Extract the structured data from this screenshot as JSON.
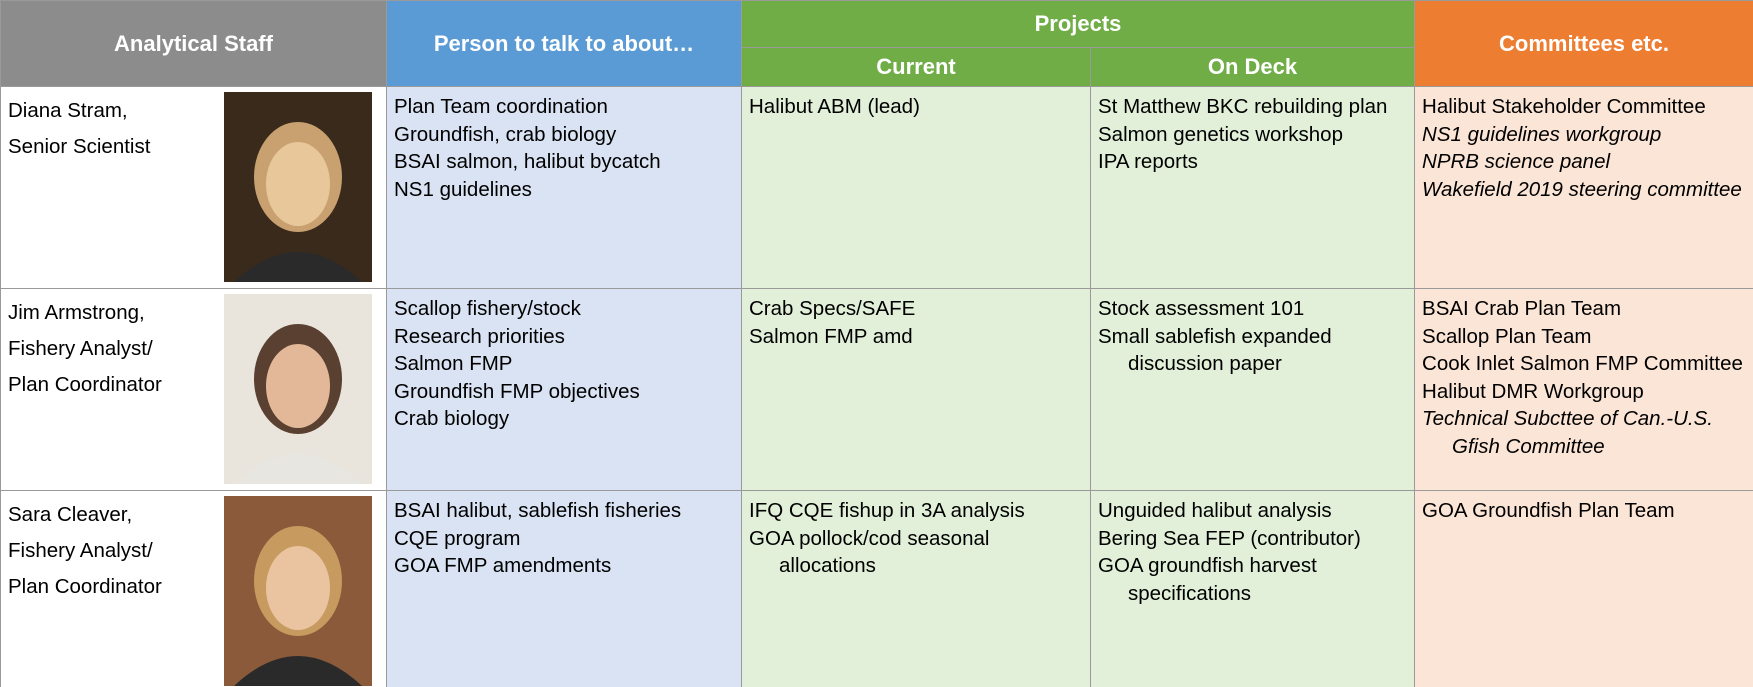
{
  "header": {
    "staff": "Analytical Staff",
    "person": "Person to talk to about…",
    "projects": "Projects",
    "current": "Current",
    "on_deck": "On Deck",
    "committees": "Committees etc."
  },
  "rows": [
    {
      "name": "Diana Stram,",
      "title_lines": [
        "Senior Scientist"
      ],
      "topics": [
        "Plan Team coordination",
        "Groundfish, crab biology",
        "BSAI salmon, halibut bycatch",
        "NS1 guidelines"
      ],
      "current": [
        "Halibut ABM (lead)"
      ],
      "on_deck": [
        "St Matthew BKC rebuilding plan",
        "Salmon genetics workshop",
        "IPA reports"
      ],
      "committees": [
        {
          "text": "Halibut Stakeholder Committee",
          "italic": false
        },
        {
          "text": "NS1 guidelines workgroup",
          "italic": true
        },
        {
          "text": "NPRB science panel",
          "italic": true
        },
        {
          "text": "Wakefield 2019 steering committee",
          "italic": true
        }
      ]
    },
    {
      "name": "Jim Armstrong,",
      "title_lines": [
        "Fishery Analyst/",
        "Plan Coordinator"
      ],
      "topics": [
        "Scallop fishery/stock",
        "Research priorities",
        "Salmon FMP",
        "Groundfish FMP objectives",
        "Crab biology"
      ],
      "current": [
        "Crab Specs/SAFE",
        "Salmon FMP amd"
      ],
      "on_deck": [
        "Stock assessment 101",
        "Small sablefish expanded discussion paper"
      ],
      "committees": [
        {
          "text": "BSAI Crab Plan Team",
          "italic": false
        },
        {
          "text": "Scallop Plan Team",
          "italic": false
        },
        {
          "text": "Cook Inlet Salmon FMP Committee",
          "italic": false
        },
        {
          "text": "Halibut DMR Workgroup",
          "italic": false
        },
        {
          "text": "Technical Subcttee of Can.-U.S. Gfish Committee",
          "italic": true
        }
      ]
    },
    {
      "name": "Sara Cleaver,",
      "title_lines": [
        "Fishery Analyst/",
        "Plan Coordinator"
      ],
      "topics": [
        "BSAI halibut, sablefish fisheries",
        "CQE program",
        "GOA FMP amendments"
      ],
      "current": [
        "IFQ CQE fishup in 3A analysis",
        "GOA pollock/cod seasonal allocations"
      ],
      "on_deck": [
        "Unguided halibut analysis",
        "Bering Sea FEP (contributor)",
        "GOA groundfish harvest specifications"
      ],
      "committees": [
        {
          "text": "GOA Groundfish Plan Team",
          "italic": false
        }
      ]
    }
  ]
}
